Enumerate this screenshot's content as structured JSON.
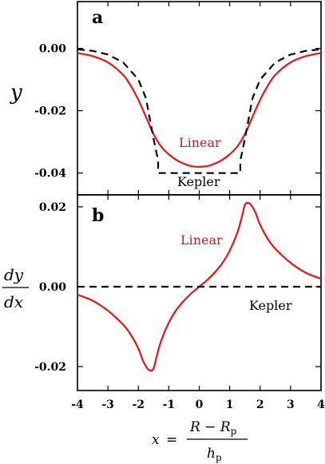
{
  "chart_data": [
    {
      "panel": "a",
      "type": "line",
      "ylabel": "y",
      "xlim": [
        -4,
        4
      ],
      "ylim": [
        -0.047,
        0.015
      ],
      "yticks": [
        0.0,
        -0.02,
        -0.04
      ],
      "ytick_labels": [
        "0.00",
        "-0.02",
        "-0.04"
      ],
      "xticks": [
        -4,
        -3,
        -2,
        -1,
        0,
        1,
        2,
        3,
        4
      ],
      "series": [
        {
          "name": "Linear",
          "color": "#e8141b",
          "style": "solid",
          "x": [
            -4.0,
            -3.5,
            -3.0,
            -2.5,
            -2.25,
            -2.0,
            -1.75,
            -1.5,
            -1.25,
            -1.0,
            -0.75,
            -0.5,
            -0.25,
            0.0,
            0.25,
            0.5,
            0.75,
            1.0,
            1.25,
            1.5,
            1.75,
            2.0,
            2.25,
            2.5,
            3.0,
            3.5,
            4.0
          ],
          "y": [
            -0.0015,
            -0.0025,
            -0.0045,
            -0.0085,
            -0.012,
            -0.0165,
            -0.022,
            -0.0275,
            -0.0315,
            -0.034,
            -0.0358,
            -0.037,
            -0.0378,
            -0.038,
            -0.0378,
            -0.037,
            -0.0358,
            -0.034,
            -0.0315,
            -0.0275,
            -0.022,
            -0.0165,
            -0.012,
            -0.0085,
            -0.0045,
            -0.0025,
            -0.0015
          ]
        },
        {
          "name": "Kepler",
          "color": "#000000",
          "style": "dashed",
          "x": [
            -4.0,
            -3.5,
            -3.0,
            -2.5,
            -2.0,
            -1.75,
            -1.5,
            -1.35,
            -1.35,
            1.35,
            1.35,
            1.5,
            1.75,
            2.0,
            2.5,
            3.0,
            3.5,
            4.0
          ],
          "y": [
            -0.0003,
            -0.0008,
            -0.002,
            -0.0045,
            -0.01,
            -0.016,
            -0.029,
            -0.036,
            -0.04,
            -0.04,
            -0.036,
            -0.029,
            -0.016,
            -0.01,
            -0.0045,
            -0.002,
            -0.0008,
            -0.0003
          ]
        }
      ],
      "annotations": [
        "Linear",
        "Kepler"
      ]
    },
    {
      "panel": "b",
      "type": "line",
      "ylabel_num": "dy",
      "ylabel_den": "dx",
      "xlim": [
        -4,
        4
      ],
      "ylim": [
        -0.026,
        0.023
      ],
      "yticks": [
        0.02,
        0.0,
        -0.02
      ],
      "ytick_labels": [
        "0.02",
        "0.00",
        "-0.02"
      ],
      "xticks": [
        -4,
        -3,
        -2,
        -1,
        0,
        1,
        2,
        3,
        4
      ],
      "xtick_labels": [
        "-4",
        "-3",
        "-2",
        "-1",
        "0",
        "1",
        "2",
        "3",
        "4"
      ],
      "xlabel": "x = (R − R_p) / h_p",
      "series": [
        {
          "name": "Linear",
          "color": "#e8141b",
          "style": "solid",
          "x": [
            -4.0,
            -3.5,
            -3.0,
            -2.5,
            -2.25,
            -2.0,
            -1.85,
            -1.7,
            -1.6,
            -1.5,
            -1.4,
            -1.25,
            -1.0,
            -0.75,
            -0.5,
            -0.25,
            0.0,
            0.25,
            0.5,
            0.75,
            1.0,
            1.25,
            1.4,
            1.5,
            1.6,
            1.7,
            1.85,
            2.0,
            2.25,
            2.5,
            3.0,
            3.5,
            4.0
          ],
          "y": [
            -0.002,
            -0.0035,
            -0.006,
            -0.0095,
            -0.012,
            -0.0155,
            -0.0185,
            -0.0205,
            -0.021,
            -0.0205,
            -0.0175,
            -0.0135,
            -0.009,
            -0.0058,
            -0.0035,
            -0.0016,
            0.0,
            0.0016,
            0.0035,
            0.0058,
            0.009,
            0.0135,
            0.0175,
            0.0205,
            0.021,
            0.0205,
            0.0185,
            0.0155,
            0.012,
            0.0095,
            0.006,
            0.0035,
            0.002
          ]
        },
        {
          "name": "Kepler",
          "color": "#000000",
          "style": "dashed",
          "x": [
            -4.0,
            4.0
          ],
          "y": [
            0.0,
            0.0
          ]
        }
      ],
      "annotations": [
        "Linear",
        "Kepler"
      ]
    }
  ],
  "labels": {
    "panel_a": "a",
    "panel_b": "b",
    "ylabel_a": "y",
    "ylabel_b_num": "dy",
    "ylabel_b_den": "dx",
    "linear_a": "Linear",
    "kepler_a": "Kepler",
    "linear_b": "Linear",
    "kepler_b": "Kepler",
    "xlabel_x": "x",
    "xlabel_eq": "=",
    "xlabel_num": "R − R",
    "xlabel_num_sub": "p",
    "xlabel_den": "h",
    "xlabel_den_sub": "p"
  }
}
